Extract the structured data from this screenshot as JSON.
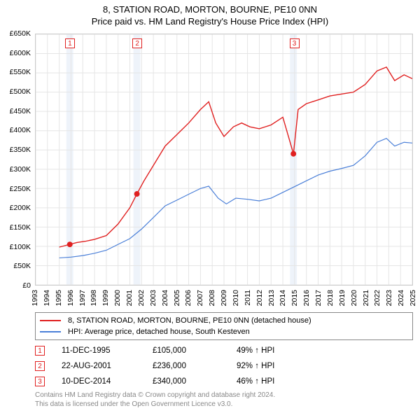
{
  "title": {
    "line1": "8, STATION ROAD, MORTON, BOURNE, PE10 0NN",
    "line2": "Price paid vs. HM Land Registry's House Price Index (HPI)"
  },
  "chart": {
    "type": "line",
    "background_color": "#ffffff",
    "grid_color": "#e5e5e5",
    "border_color": "#cccccc",
    "vertical_band_color": "#eef3fa",
    "x_axis": {
      "min": 1993,
      "max": 2025,
      "ticks": [
        1993,
        1994,
        1995,
        1996,
        1997,
        1998,
        1999,
        2000,
        2001,
        2002,
        2003,
        2004,
        2005,
        2006,
        2007,
        2008,
        2009,
        2010,
        2011,
        2012,
        2013,
        2014,
        2015,
        2016,
        2017,
        2018,
        2019,
        2020,
        2021,
        2022,
        2023,
        2024,
        2025
      ],
      "label_fontsize": 10.5
    },
    "y_axis": {
      "min": 0,
      "max": 650000,
      "tick_step": 50000,
      "labels": [
        "£0",
        "£50K",
        "£100K",
        "£150K",
        "£200K",
        "£250K",
        "£300K",
        "£350K",
        "£400K",
        "£450K",
        "£500K",
        "£550K",
        "£600K",
        "£650K"
      ],
      "label_fontsize": 10.5
    },
    "vertical_bands": [
      {
        "year": 1995.9
      },
      {
        "year": 2001.6
      },
      {
        "year": 2014.9
      }
    ],
    "series": [
      {
        "name": "price_paid",
        "color": "#e02020",
        "line_width": 1.4,
        "points": [
          [
            1995.0,
            98000
          ],
          [
            1995.9,
            105000
          ],
          [
            1996.5,
            110000
          ],
          [
            1997.2,
            113000
          ],
          [
            1998.0,
            118000
          ],
          [
            1999.0,
            128000
          ],
          [
            2000.0,
            158000
          ],
          [
            2001.0,
            200000
          ],
          [
            2001.6,
            236000
          ],
          [
            2002.2,
            270000
          ],
          [
            2003.0,
            310000
          ],
          [
            2004.0,
            360000
          ],
          [
            2005.0,
            390000
          ],
          [
            2006.0,
            420000
          ],
          [
            2007.0,
            455000
          ],
          [
            2007.7,
            475000
          ],
          [
            2008.3,
            420000
          ],
          [
            2009.0,
            385000
          ],
          [
            2009.8,
            410000
          ],
          [
            2010.5,
            420000
          ],
          [
            2011.2,
            410000
          ],
          [
            2012.0,
            405000
          ],
          [
            2013.0,
            415000
          ],
          [
            2014.0,
            435000
          ],
          [
            2014.9,
            340000
          ],
          [
            2015.3,
            455000
          ],
          [
            2016.0,
            470000
          ],
          [
            2017.0,
            480000
          ],
          [
            2018.0,
            490000
          ],
          [
            2019.0,
            495000
          ],
          [
            2020.0,
            500000
          ],
          [
            2021.0,
            520000
          ],
          [
            2022.0,
            555000
          ],
          [
            2022.8,
            565000
          ],
          [
            2023.5,
            530000
          ],
          [
            2024.3,
            545000
          ],
          [
            2025.0,
            535000
          ]
        ]
      },
      {
        "name": "hpi",
        "color": "#4a7fd8",
        "line_width": 1.2,
        "points": [
          [
            1995.0,
            70000
          ],
          [
            1996.0,
            72000
          ],
          [
            1997.0,
            76000
          ],
          [
            1998.0,
            82000
          ],
          [
            1999.0,
            90000
          ],
          [
            2000.0,
            105000
          ],
          [
            2001.0,
            120000
          ],
          [
            2002.0,
            145000
          ],
          [
            2003.0,
            175000
          ],
          [
            2004.0,
            205000
          ],
          [
            2005.0,
            220000
          ],
          [
            2006.0,
            235000
          ],
          [
            2007.0,
            250000
          ],
          [
            2007.7,
            256000
          ],
          [
            2008.5,
            225000
          ],
          [
            2009.2,
            210000
          ],
          [
            2010.0,
            225000
          ],
          [
            2011.0,
            222000
          ],
          [
            2012.0,
            218000
          ],
          [
            2013.0,
            225000
          ],
          [
            2014.0,
            240000
          ],
          [
            2015.0,
            255000
          ],
          [
            2016.0,
            270000
          ],
          [
            2017.0,
            285000
          ],
          [
            2018.0,
            295000
          ],
          [
            2019.0,
            302000
          ],
          [
            2020.0,
            310000
          ],
          [
            2021.0,
            335000
          ],
          [
            2022.0,
            370000
          ],
          [
            2022.8,
            380000
          ],
          [
            2023.5,
            360000
          ],
          [
            2024.3,
            370000
          ],
          [
            2025.0,
            368000
          ]
        ]
      }
    ],
    "event_markers": [
      {
        "num": "1",
        "year": 1995.9,
        "price": 105000,
        "color": "#e02020"
      },
      {
        "num": "2",
        "year": 2001.6,
        "price": 236000,
        "color": "#e02020"
      },
      {
        "num": "3",
        "year": 2014.9,
        "price": 340000,
        "color": "#e02020"
      },
      {
        "num": "1",
        "year": 1995.9,
        "price": null,
        "box_top_offset": 6,
        "color": "#e02020"
      },
      {
        "num": "2",
        "year": 2001.6,
        "price": null,
        "box_top_offset": 6,
        "color": "#e02020"
      },
      {
        "num": "3",
        "year": 2014.9,
        "price": null,
        "box_top_offset": 6,
        "color": "#e02020"
      }
    ]
  },
  "legend": {
    "items": [
      {
        "label": "8, STATION ROAD, MORTON, BOURNE, PE10 0NN (detached house)",
        "color": "#e02020"
      },
      {
        "label": "HPI: Average price, detached house, South Kesteven",
        "color": "#4a7fd8"
      }
    ]
  },
  "events": [
    {
      "num": "1",
      "date": "11-DEC-1995",
      "price": "£105,000",
      "pct": "49% ↑ HPI",
      "color": "#e02020"
    },
    {
      "num": "2",
      "date": "22-AUG-2001",
      "price": "£236,000",
      "pct": "92% ↑ HPI",
      "color": "#e02020"
    },
    {
      "num": "3",
      "date": "10-DEC-2014",
      "price": "£340,000",
      "pct": "46% ↑ HPI",
      "color": "#e02020"
    }
  ],
  "footer": {
    "line1": "Contains HM Land Registry data © Crown copyright and database right 2024.",
    "line2": "This data is licensed under the Open Government Licence v3.0."
  }
}
